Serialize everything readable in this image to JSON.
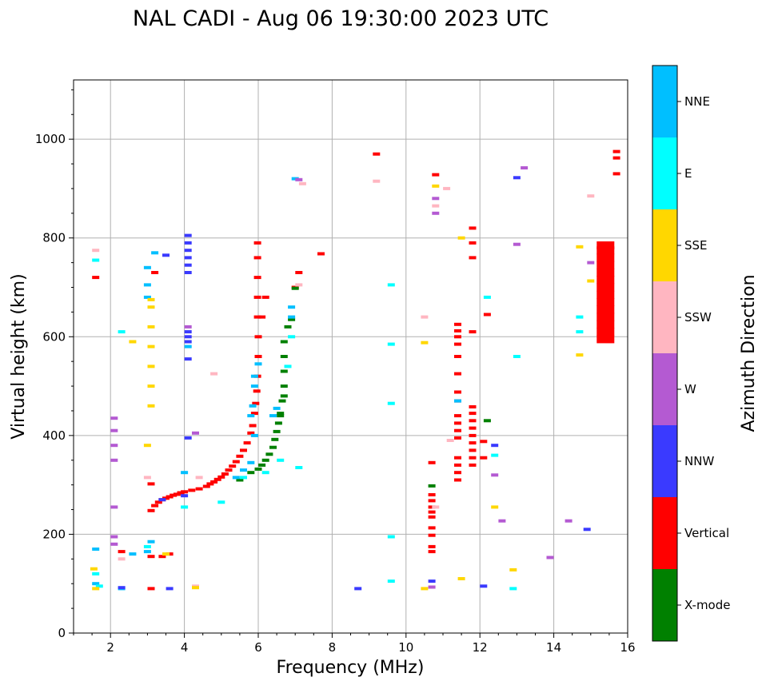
{
  "chart_data": {
    "type": "scatter",
    "title": "NAL CADI - Aug 06 19:30:00 2023 UTC",
    "xlabel": "Frequency (MHz)",
    "ylabel": "Virtual height (km)",
    "xlim": [
      1,
      16
    ],
    "ylim": [
      0,
      1120
    ],
    "xticks": [
      2,
      4,
      6,
      8,
      10,
      12,
      14,
      16
    ],
    "yticks": [
      0,
      200,
      400,
      600,
      800,
      1000
    ],
    "grid": true,
    "colorbar": {
      "label": "Azimuth Direction",
      "categories": [
        {
          "name": "X-mode",
          "color": "#008000"
        },
        {
          "name": "Vertical",
          "color": "#ff0000"
        },
        {
          "name": "NNW",
          "color": "#3a3aff"
        },
        {
          "name": "W",
          "color": "#b45ad2"
        },
        {
          "name": "SSW",
          "color": "#ffb6c1"
        },
        {
          "name": "SSE",
          "color": "#ffd700"
        },
        {
          "name": "E",
          "color": "#00ffff"
        },
        {
          "name": "NNE",
          "color": "#00bfff"
        }
      ]
    },
    "series": [
      {
        "name": "Vertical",
        "color": "#ff0000",
        "points": [
          [
            3.1,
            248
          ],
          [
            3.2,
            258
          ],
          [
            3.3,
            265
          ],
          [
            3.4,
            270
          ],
          [
            3.5,
            273
          ],
          [
            3.6,
            276
          ],
          [
            3.7,
            279
          ],
          [
            3.8,
            281
          ],
          [
            3.9,
            284
          ],
          [
            4.0,
            286
          ],
          [
            4.2,
            289
          ],
          [
            4.4,
            292
          ],
          [
            4.6,
            297
          ],
          [
            4.7,
            302
          ],
          [
            4.8,
            306
          ],
          [
            4.9,
            311
          ],
          [
            5.0,
            316
          ],
          [
            5.1,
            322
          ],
          [
            5.2,
            330
          ],
          [
            5.3,
            338
          ],
          [
            5.4,
            347
          ],
          [
            5.5,
            358
          ],
          [
            5.6,
            370
          ],
          [
            5.7,
            385
          ],
          [
            5.8,
            405
          ],
          [
            5.85,
            420
          ],
          [
            5.9,
            445
          ],
          [
            5.93,
            465
          ],
          [
            5.96,
            490
          ],
          [
            5.98,
            520
          ],
          [
            6.0,
            560
          ],
          [
            6.0,
            600
          ],
          [
            5.98,
            640
          ],
          [
            5.98,
            680
          ],
          [
            5.98,
            720
          ],
          [
            5.98,
            760
          ],
          [
            5.98,
            790
          ],
          [
            6.1,
            640
          ],
          [
            6.2,
            680
          ],
          [
            3.1,
            155
          ],
          [
            3.4,
            155
          ],
          [
            3.6,
            160
          ],
          [
            2.3,
            165
          ],
          [
            3.1,
            302
          ],
          [
            3.2,
            730
          ],
          [
            1.6,
            720
          ],
          [
            7.0,
            700
          ],
          [
            7.1,
            730
          ],
          [
            7.7,
            768
          ],
          [
            9.2,
            970
          ],
          [
            10.7,
            280
          ],
          [
            10.7,
            268
          ],
          [
            10.7,
            255
          ],
          [
            10.7,
            245
          ],
          [
            10.7,
            235
          ],
          [
            10.7,
            213
          ],
          [
            10.7,
            198
          ],
          [
            10.7,
            175
          ],
          [
            10.7,
            165
          ],
          [
            10.7,
            345
          ],
          [
            10.8,
            928
          ],
          [
            11.4,
            310
          ],
          [
            11.4,
            325
          ],
          [
            11.4,
            340
          ],
          [
            11.4,
            355
          ],
          [
            11.4,
            395
          ],
          [
            11.4,
            410
          ],
          [
            11.4,
            425
          ],
          [
            11.4,
            440
          ],
          [
            11.4,
            470
          ],
          [
            11.4,
            488
          ],
          [
            11.4,
            525
          ],
          [
            11.4,
            560
          ],
          [
            11.4,
            585
          ],
          [
            11.4,
            600
          ],
          [
            11.4,
            612
          ],
          [
            11.4,
            625
          ],
          [
            11.8,
            340
          ],
          [
            11.8,
            355
          ],
          [
            11.8,
            370
          ],
          [
            11.8,
            385
          ],
          [
            11.8,
            400
          ],
          [
            11.8,
            415
          ],
          [
            11.8,
            430
          ],
          [
            11.8,
            445
          ],
          [
            11.8,
            458
          ],
          [
            11.8,
            610
          ],
          [
            11.8,
            760
          ],
          [
            11.8,
            790
          ],
          [
            11.8,
            820
          ],
          [
            12.1,
            355
          ],
          [
            12.1,
            388
          ],
          [
            12.2,
            645
          ],
          [
            15.7,
            930
          ],
          [
            15.7,
            962
          ],
          [
            15.7,
            975
          ],
          [
            3.1,
            90
          ]
        ]
      },
      {
        "name": "X-mode",
        "color": "#008000",
        "points": [
          [
            5.5,
            310
          ],
          [
            5.8,
            325
          ],
          [
            6.0,
            332
          ],
          [
            6.1,
            340
          ],
          [
            6.2,
            350
          ],
          [
            6.3,
            362
          ],
          [
            6.4,
            376
          ],
          [
            6.45,
            392
          ],
          [
            6.5,
            408
          ],
          [
            6.55,
            425
          ],
          [
            6.6,
            445
          ],
          [
            6.65,
            470
          ],
          [
            6.7,
            500
          ],
          [
            6.7,
            530
          ],
          [
            6.7,
            560
          ],
          [
            6.7,
            590
          ],
          [
            6.8,
            620
          ],
          [
            6.9,
            635
          ],
          [
            7.0,
            698
          ],
          [
            6.7,
            480
          ],
          [
            6.6,
            440
          ],
          [
            12.2,
            430
          ],
          [
            10.7,
            298
          ]
        ]
      },
      {
        "name": "NNE",
        "color": "#00bfff",
        "points": [
          [
            5.4,
            315
          ],
          [
            5.6,
            330
          ],
          [
            5.8,
            345
          ],
          [
            5.9,
            400
          ],
          [
            5.8,
            440
          ],
          [
            5.85,
            460
          ],
          [
            5.9,
            500
          ],
          [
            5.9,
            520
          ],
          [
            6.0,
            545
          ],
          [
            3.0,
            680
          ],
          [
            3.0,
            705
          ],
          [
            3.0,
            740
          ],
          [
            3.2,
            770
          ],
          [
            6.4,
            440
          ],
          [
            6.5,
            455
          ],
          [
            6.9,
            640
          ],
          [
            6.9,
            660
          ],
          [
            2.3,
            90
          ],
          [
            1.6,
            100
          ],
          [
            1.6,
            170
          ],
          [
            4.0,
            325
          ],
          [
            3.0,
            165
          ],
          [
            3.1,
            185
          ],
          [
            2.6,
            160
          ],
          [
            7.0,
            920
          ],
          [
            4.1,
            580
          ],
          [
            11.4,
            470
          ]
        ]
      },
      {
        "name": "E",
        "color": "#00ffff",
        "points": [
          [
            5.6,
            315
          ],
          [
            6.2,
            325
          ],
          [
            6.6,
            350
          ],
          [
            6.8,
            540
          ],
          [
            6.9,
            600
          ],
          [
            4.0,
            255
          ],
          [
            3.0,
            175
          ],
          [
            1.6,
            120
          ],
          [
            1.7,
            95
          ],
          [
            2.3,
            610
          ],
          [
            1.6,
            755
          ],
          [
            9.6,
            105
          ],
          [
            9.6,
            195
          ],
          [
            9.6,
            465
          ],
          [
            9.6,
            585
          ],
          [
            9.6,
            705
          ],
          [
            12.2,
            680
          ],
          [
            12.4,
            360
          ],
          [
            12.9,
            90
          ],
          [
            13.0,
            560
          ],
          [
            14.7,
            610
          ],
          [
            14.7,
            640
          ],
          [
            7.1,
            335
          ],
          [
            5.0,
            265
          ]
        ]
      },
      {
        "name": "NNW",
        "color": "#3a3aff",
        "points": [
          [
            4.1,
            395
          ],
          [
            4.1,
            730
          ],
          [
            4.1,
            745
          ],
          [
            4.1,
            760
          ],
          [
            4.1,
            775
          ],
          [
            4.1,
            790
          ],
          [
            4.1,
            805
          ],
          [
            4.1,
            610
          ],
          [
            4.1,
            600
          ],
          [
            4.1,
            590
          ],
          [
            4.1,
            555
          ],
          [
            3.4,
            270
          ],
          [
            3.5,
            765
          ],
          [
            3.6,
            90
          ],
          [
            2.3,
            92
          ],
          [
            8.7,
            90
          ],
          [
            10.7,
            105
          ],
          [
            12.1,
            95
          ],
          [
            12.4,
            380
          ],
          [
            13.0,
            922
          ],
          [
            14.9,
            210
          ],
          [
            4.0,
            278
          ]
        ]
      },
      {
        "name": "W",
        "color": "#b45ad2",
        "points": [
          [
            2.1,
            180
          ],
          [
            2.1,
            195
          ],
          [
            2.1,
            255
          ],
          [
            2.1,
            350
          ],
          [
            2.1,
            380
          ],
          [
            2.1,
            410
          ],
          [
            2.1,
            435
          ],
          [
            4.3,
            405
          ],
          [
            10.7,
            93
          ],
          [
            10.8,
            850
          ],
          [
            10.8,
            880
          ],
          [
            12.4,
            320
          ],
          [
            12.6,
            227
          ],
          [
            13.0,
            787
          ],
          [
            13.2,
            942
          ],
          [
            13.9,
            153
          ],
          [
            14.4,
            227
          ],
          [
            15.0,
            750
          ],
          [
            15.4,
            678
          ],
          [
            7.1,
            918
          ],
          [
            4.1,
            620
          ]
        ]
      },
      {
        "name": "SSW",
        "color": "#ffb6c1",
        "points": [
          [
            3.0,
            315
          ],
          [
            4.8,
            525
          ],
          [
            4.4,
            315
          ],
          [
            2.3,
            150
          ],
          [
            10.5,
            640
          ],
          [
            10.8,
            255
          ],
          [
            10.8,
            865
          ],
          [
            11.2,
            390
          ],
          [
            11.1,
            900
          ],
          [
            9.2,
            915
          ],
          [
            15.0,
            885
          ],
          [
            15.5,
            620
          ],
          [
            15.5,
            590
          ],
          [
            1.6,
            775
          ],
          [
            7.1,
            705
          ],
          [
            7.2,
            910
          ],
          [
            4.3,
            95
          ]
        ]
      },
      {
        "name": "SSE",
        "color": "#ffd700",
        "points": [
          [
            3.1,
            460
          ],
          [
            3.1,
            500
          ],
          [
            3.1,
            540
          ],
          [
            3.1,
            580
          ],
          [
            3.1,
            620
          ],
          [
            3.1,
            660
          ],
          [
            3.1,
            675
          ],
          [
            3.0,
            380
          ],
          [
            1.6,
            90
          ],
          [
            1.55,
            130
          ],
          [
            2.6,
            590
          ],
          [
            10.5,
            90
          ],
          [
            10.5,
            588
          ],
          [
            10.8,
            905
          ],
          [
            11.5,
            800
          ],
          [
            11.5,
            110
          ],
          [
            12.4,
            255
          ],
          [
            12.9,
            128
          ],
          [
            14.7,
            563
          ],
          [
            14.7,
            782
          ],
          [
            15.0,
            713
          ],
          [
            15.4,
            757
          ],
          [
            4.3,
            92
          ],
          [
            3.5,
            160
          ]
        ]
      },
      {
        "name": "Vertical-block",
        "color": "#ff0000",
        "points": [
          [
            15.4,
            595
          ],
          [
            15.4,
            610
          ],
          [
            15.4,
            625
          ],
          [
            15.4,
            640
          ],
          [
            15.4,
            655
          ],
          [
            15.4,
            670
          ],
          [
            15.4,
            685
          ],
          [
            15.4,
            700
          ],
          [
            15.4,
            715
          ],
          [
            15.4,
            730
          ],
          [
            15.4,
            745
          ],
          [
            15.4,
            760
          ],
          [
            15.4,
            775
          ],
          [
            15.4,
            785
          ]
        ]
      }
    ]
  }
}
